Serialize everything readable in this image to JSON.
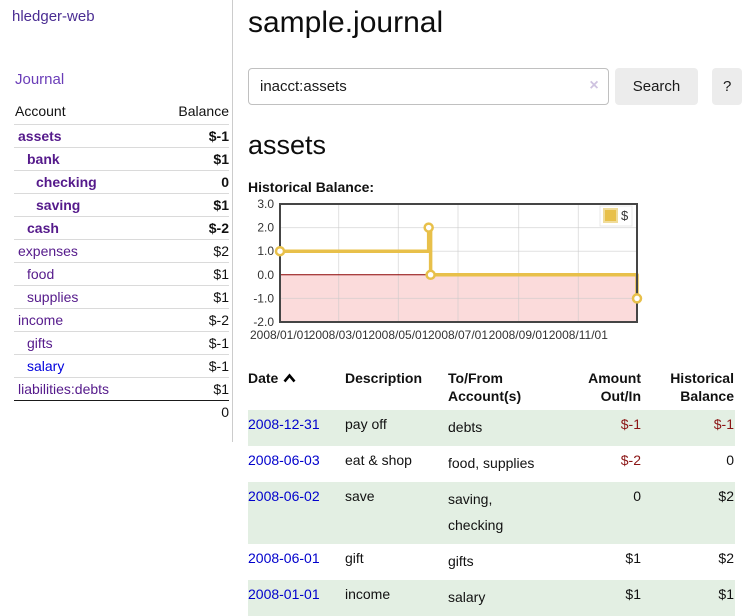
{
  "colors": {
    "accent_purple": "#551a8b",
    "brand_purple": "#4a2c92",
    "link_blue": "#0000cc",
    "negative_red": "#8b1515",
    "dim_negative_red": "#c27878",
    "row_stripe_green": "#e3efe3",
    "chart_gold": "#e8c04a",
    "chart_negative_region": "#fbdbdb",
    "chart_zero_line": "#8b0000"
  },
  "app": {
    "title": "hledger-web",
    "journal_nav_label": "Journal"
  },
  "sidebar": {
    "accounts_table": {
      "col_account": "Account",
      "col_balance": "Balance",
      "rows": [
        {
          "name": "assets",
          "balance": "$-1",
          "indent": 1,
          "bold": true,
          "balance_class": "neg"
        },
        {
          "name": "bank",
          "balance": "$1",
          "indent": 2,
          "bold": true,
          "balance_class": ""
        },
        {
          "name": "checking",
          "balance": "0",
          "indent": 3,
          "bold": true,
          "balance_class": ""
        },
        {
          "name": "saving",
          "balance": "$1",
          "indent": 3,
          "bold": true,
          "balance_class": ""
        },
        {
          "name": "cash",
          "balance": "$-2",
          "indent": 2,
          "bold": true,
          "balance_class": "neg"
        },
        {
          "name": "expenses",
          "balance": "$2",
          "indent": 1,
          "bold": false,
          "balance_class": ""
        },
        {
          "name": "food",
          "balance": "$1",
          "indent": 2,
          "bold": false,
          "balance_class": ""
        },
        {
          "name": "supplies",
          "balance": "$1",
          "indent": 2,
          "bold": false,
          "balance_class": ""
        },
        {
          "name": "income",
          "balance": "$-2",
          "indent": 1,
          "bold": false,
          "balance_class": "dimneg"
        },
        {
          "name": "gifts",
          "balance": "$-1",
          "indent": 2,
          "bold": false,
          "balance_class": "dimneg"
        },
        {
          "name": "salary",
          "balance": "$-1",
          "indent": 2,
          "bold": false,
          "balance_class": "dimneg",
          "link_color": "blue"
        },
        {
          "name": "liabilities:debts",
          "balance": "$1",
          "indent": 1,
          "bold": false,
          "balance_class": ""
        }
      ],
      "total": "0"
    }
  },
  "header": {
    "title": "sample.journal"
  },
  "search": {
    "query": "inacct:assets",
    "clear_icon": "×",
    "search_button_label": "Search",
    "help_button_label": "?"
  },
  "account_page": {
    "heading": "assets",
    "chart_title": "Historical Balance:"
  },
  "chart_data": {
    "type": "line",
    "title": "Historical Balance:",
    "style": "step",
    "x_range_days": 365,
    "ylim": [
      -2,
      3
    ],
    "y_ticks": [
      3.0,
      2.0,
      1.0,
      0.0,
      -1.0,
      -2.0
    ],
    "x_ticks": [
      {
        "label": "2008/01/01",
        "day": 0
      },
      {
        "label": "2008/03/01",
        "day": 60
      },
      {
        "label": "2008/05/01",
        "day": 121
      },
      {
        "label": "2008/07/01",
        "day": 182
      },
      {
        "label": "2008/09/01",
        "day": 244
      },
      {
        "label": "2008/11/01",
        "day": 305
      }
    ],
    "series": [
      {
        "name": "$",
        "color": "#e8c04a",
        "points": [
          {
            "date": "2008-01-01",
            "day": 0,
            "value": 1
          },
          {
            "date": "2008-06-01",
            "day": 152,
            "value": 2
          },
          {
            "date": "2008-06-03",
            "day": 154,
            "value": 0
          },
          {
            "date": "2008-12-31",
            "day": 365,
            "value": -1
          }
        ]
      }
    ],
    "legend": {
      "label": "$",
      "position": "top-right"
    },
    "grid": true,
    "negative_region_color": "#fbdbdb",
    "zero_line_color": "#8b0000"
  },
  "register": {
    "columns": [
      {
        "label": "Date",
        "align": "left",
        "sorted": "ascending"
      },
      {
        "label": "Description",
        "align": "left"
      },
      {
        "label": "To/From Account(s)",
        "align": "left"
      },
      {
        "label": "Amount Out/In",
        "align": "right"
      },
      {
        "label": "Historical Balance",
        "align": "right"
      }
    ],
    "rows": [
      {
        "date": "2008-12-31",
        "description": "pay off",
        "accounts": "debts",
        "amount": "$-1",
        "amount_class": "neg",
        "balance": "$-1",
        "balance_class": "neg"
      },
      {
        "date": "2008-06-03",
        "description": "eat & shop",
        "accounts": "food, supplies",
        "amount": "$-2",
        "amount_class": "neg",
        "balance": "0",
        "balance_class": ""
      },
      {
        "date": "2008-06-02",
        "description": "save",
        "accounts": "saving, checking",
        "amount": "0",
        "amount_class": "",
        "balance": "$2",
        "balance_class": ""
      },
      {
        "date": "2008-06-01",
        "description": "gift",
        "accounts": "gifts",
        "amount": "$1",
        "amount_class": "",
        "balance": "$2",
        "balance_class": ""
      },
      {
        "date": "2008-01-01",
        "description": "income",
        "accounts": "salary",
        "amount": "$1",
        "amount_class": "",
        "balance": "$1",
        "balance_class": ""
      }
    ]
  }
}
